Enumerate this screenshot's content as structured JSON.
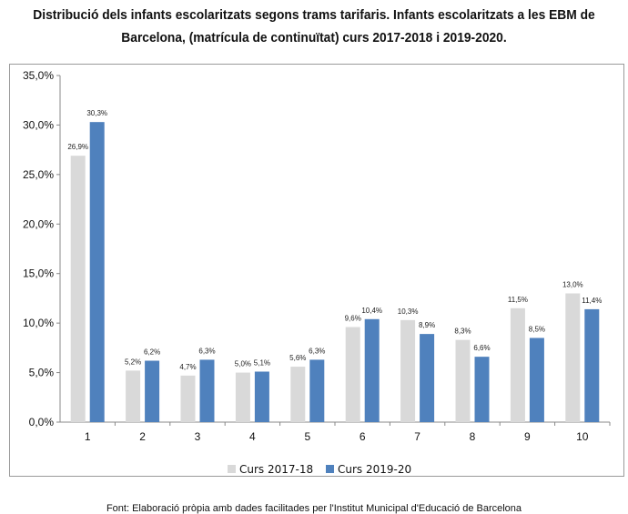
{
  "title_line1": "Distribució dels infants escolaritzats segons trams tarifaris. Infants escolaritzats a les EBM de",
  "title_line2": "Barcelona, (matrícula de continuïtat) curs 2017-2018 i 2019-2020.",
  "footer": "Font: Elaboració pròpia amb dades facilitades per l'Institut Municipal d'Educació de Barcelona",
  "chart_data": {
    "type": "bar",
    "categories": [
      "1",
      "2",
      "3",
      "4",
      "5",
      "6",
      "7",
      "8",
      "9",
      "10"
    ],
    "series": [
      {
        "name": "Curs 2017-18",
        "color": "#d9d9d9",
        "values": [
          26.9,
          5.2,
          4.7,
          5.0,
          5.6,
          9.6,
          10.3,
          8.3,
          11.5,
          13.0
        ],
        "labels": [
          "26,9%",
          "5,2%",
          "4,7%",
          "5,0%",
          "5,6%",
          "9,6%",
          "10,3%",
          "8,3%",
          "11,5%",
          "13,0%"
        ]
      },
      {
        "name": "Curs 2019-20",
        "color": "#4f81bd",
        "values": [
          30.3,
          6.2,
          6.3,
          5.1,
          6.3,
          10.4,
          8.9,
          6.6,
          8.5,
          11.4
        ],
        "labels": [
          "30,3%",
          "6,2%",
          "6,3%",
          "5,1%",
          "6,3%",
          "10,4%",
          "8,9%",
          "6,6%",
          "8,5%",
          "11,4%"
        ]
      }
    ],
    "ylim": [
      0,
      35
    ],
    "yticks": [
      0,
      5,
      10,
      15,
      20,
      25,
      30,
      35
    ],
    "ytick_labels": [
      "0,0%",
      "5,0%",
      "10,0%",
      "15,0%",
      "20,0%",
      "25,0%",
      "30,0%",
      "35,0%"
    ],
    "grid": false,
    "legend": "bottom"
  }
}
